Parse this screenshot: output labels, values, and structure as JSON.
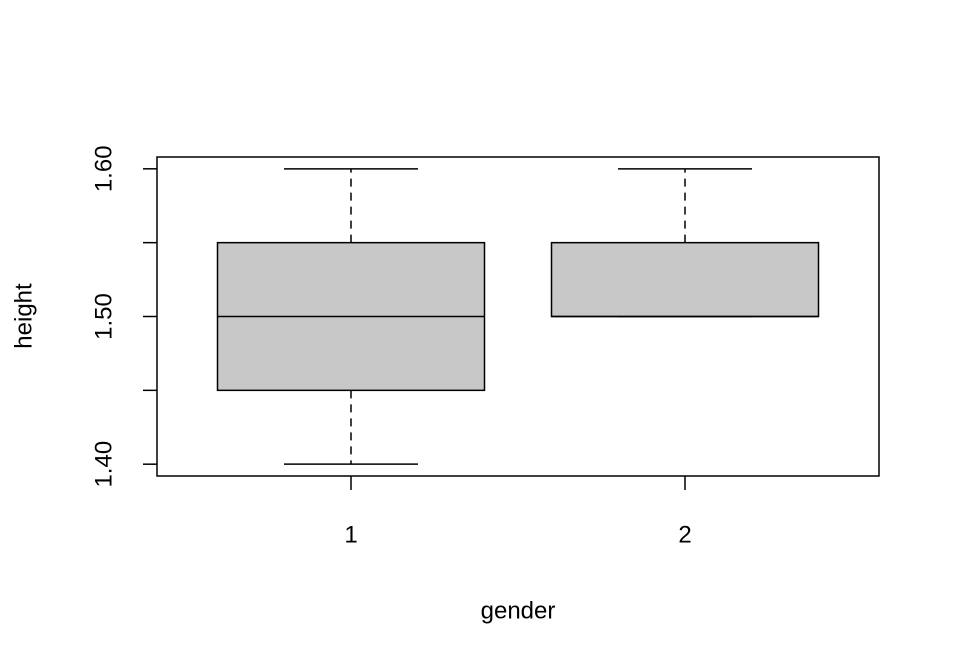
{
  "chart_data": {
    "type": "boxplot",
    "x_label": "gender",
    "y_label": "height",
    "categories": [
      "1",
      "2"
    ],
    "boxes": [
      {
        "min": 1.4,
        "q1": 1.45,
        "median": 1.5,
        "q3": 1.55,
        "max": 1.6
      },
      {
        "min": 1.5,
        "q1": 1.5,
        "median": 1.5,
        "q3": 1.55,
        "max": 1.6
      }
    ],
    "color": "#c8c8c8",
    "ylim": [
      1.392,
      1.608
    ],
    "yticks": [
      {
        "value": 1.4,
        "label": "1.40"
      },
      {
        "value": 1.45,
        "label": null
      },
      {
        "value": 1.5,
        "label": "1.50"
      },
      {
        "value": 1.55,
        "label": null
      },
      {
        "value": 1.6,
        "label": "1.60"
      }
    ]
  }
}
